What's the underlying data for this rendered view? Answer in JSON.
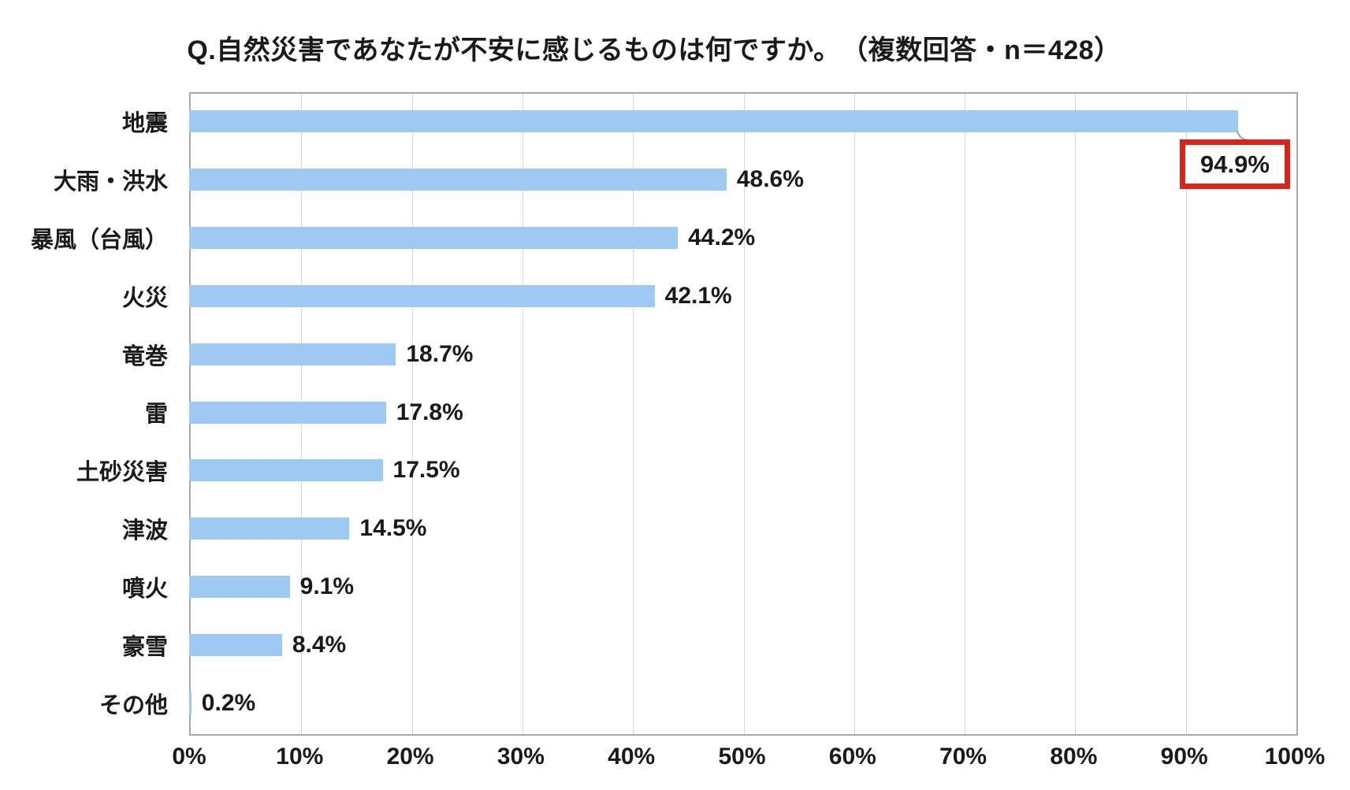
{
  "title": "Q.自然災害であなたが不安に感じるものは何ですか。　（複数回答・n＝428）",
  "chart_data": {
    "type": "bar",
    "orientation": "horizontal",
    "title": "Q.自然災害であなたが不安に感じるものは何ですか。　（複数回答・n＝428）",
    "n": 428,
    "categories": [
      "地震",
      "大雨・洪水",
      "暴風（台風）",
      "火災",
      "竜巻",
      "雷",
      "土砂災害",
      "津波",
      "噴火",
      "豪雪",
      "その他"
    ],
    "values": [
      94.9,
      48.6,
      44.2,
      42.1,
      18.7,
      17.8,
      17.5,
      14.5,
      9.1,
      8.4,
      0.2
    ],
    "value_labels": [
      "94.9%",
      "48.6%",
      "44.2%",
      "42.1%",
      "18.7%",
      "17.8%",
      "17.5%",
      "14.5%",
      "9.1%",
      "8.4%",
      "0.2%"
    ],
    "highlight": {
      "index": 0,
      "label": "94.9%",
      "box_border_color": "#d8251c"
    },
    "x_ticks": [
      "0%",
      "10%",
      "20%",
      "30%",
      "40%",
      "50%",
      "60%",
      "70%",
      "80%",
      "90%",
      "100%"
    ],
    "xlim": [
      0,
      100
    ],
    "grid": true,
    "colors": {
      "bar": "#9dc9f3",
      "gridline": "#d6d6d6",
      "plot_border": "#a8a8a8",
      "text": "#1a1a1a",
      "leader_line": "#a0a0a0"
    },
    "legend": null
  }
}
